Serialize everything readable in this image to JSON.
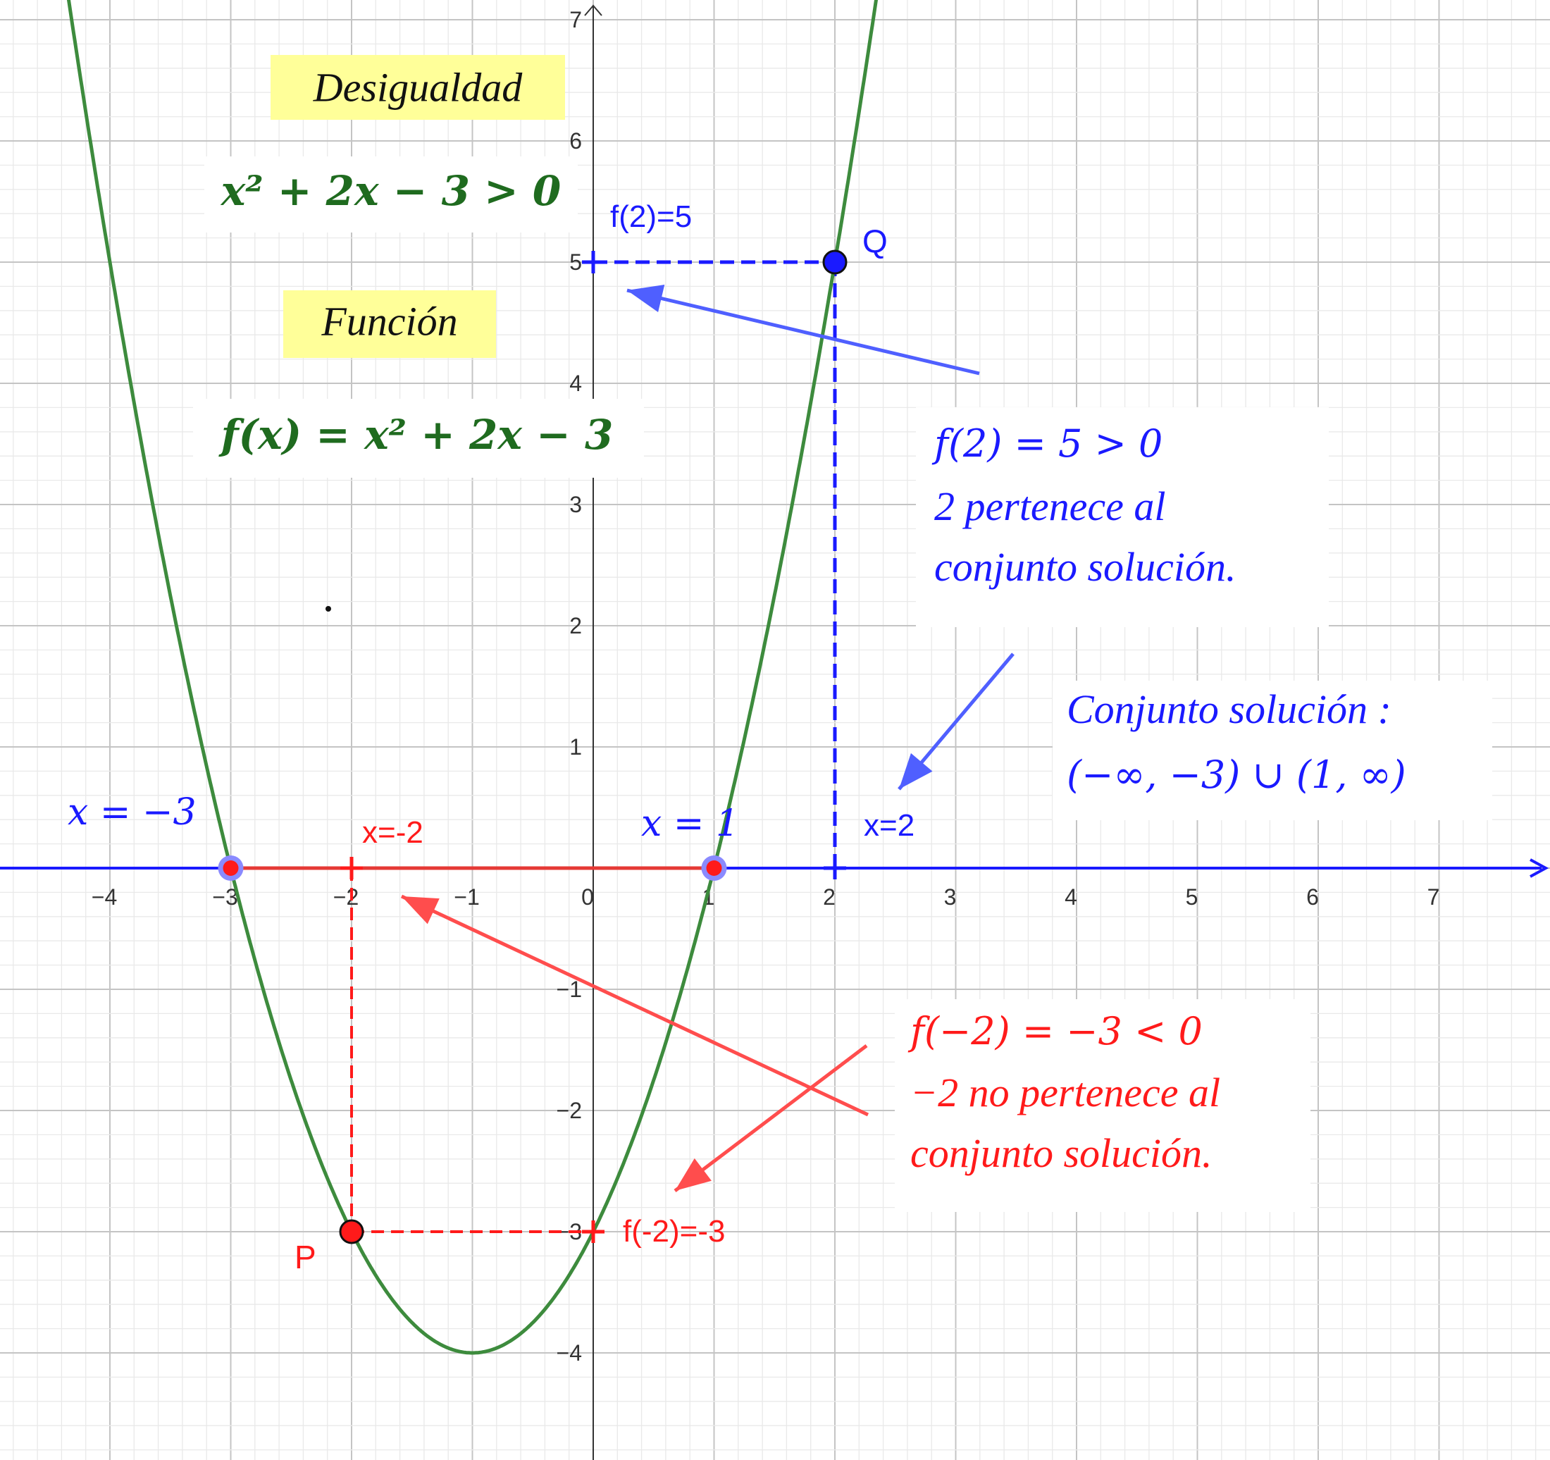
{
  "chart_data": {
    "type": "line",
    "title": "",
    "xlabel": "",
    "ylabel": "",
    "xlim": [
      -4.9,
      7.9
    ],
    "ylim": [
      -4.9,
      7.2
    ],
    "grid": true,
    "x_ticks": [
      "−4",
      "−3",
      "−2",
      "−1",
      "0",
      "1",
      "2",
      "3",
      "4",
      "5",
      "6",
      "7"
    ],
    "y_ticks": [
      "−4",
      "−3",
      "−2",
      "−1",
      "1",
      "2",
      "3",
      "4",
      "5",
      "6",
      "7"
    ],
    "function": {
      "a": 1,
      "b": 2,
      "c": -3,
      "color": "#3d8b3d"
    },
    "points": [
      {
        "label": "Q",
        "x": 2,
        "y": 5,
        "color": "#1a1aff"
      },
      {
        "label": "P",
        "x": -2,
        "y": -3,
        "color": "#ff1a1a"
      },
      {
        "label": "",
        "x": -3,
        "y": 0,
        "color": "#ff1a1a"
      },
      {
        "label": "",
        "x": 1,
        "y": 0,
        "color": "#ff1a1a"
      }
    ],
    "interval": {
      "from": -3,
      "to": 1,
      "color": "#e53935"
    },
    "colors": {
      "blue": "#1a1aff",
      "red": "#ff1a1a",
      "green": "#1f6b1f",
      "axis": "#1a1aff",
      "label_bg": "#ffff99"
    }
  },
  "labels": {
    "desigualdad_title": "Desigualdad",
    "inequality": "x² + 2x − 3 > 0",
    "funcion_title": "Función",
    "function_def": "f(x) = x² + 2x − 3",
    "f2_label": "f(2)=5",
    "q_label": "Q",
    "p_label": "P",
    "x2_label": "x=2",
    "xm2_label": "x=-2",
    "fm2_label": "f(-2)=-3",
    "root_left": "x = −3",
    "root_right": "x = 1",
    "blue_note": [
      "f(2) = 5 > 0",
      "2 pertenece al",
      "conjunto solución."
    ],
    "solution_set": [
      "Conjunto solución :",
      "(−∞, −3) ∪ (1, ∞)"
    ],
    "red_note": [
      "f(−2) = −3 < 0",
      "−2 no pertenece al",
      "conjunto solución."
    ]
  }
}
